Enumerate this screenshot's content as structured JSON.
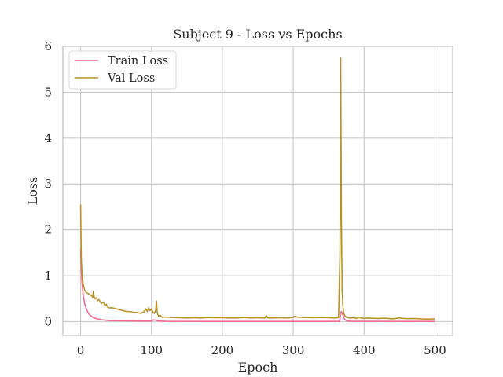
{
  "chart_data": {
    "type": "line",
    "title": "Subject 9 - Loss vs Epochs",
    "xlabel": "Epoch",
    "ylabel": "Loss",
    "xlim": [
      -25,
      525
    ],
    "ylim": [
      -0.3,
      6
    ],
    "xticks": [
      0,
      100,
      200,
      300,
      400,
      500
    ],
    "yticks": [
      0,
      1,
      2,
      3,
      4,
      5,
      6
    ],
    "grid": true,
    "legend_position": "top-left",
    "series": [
      {
        "name": "Train Loss",
        "color": "#f0698f",
        "points": [
          [
            0,
            1.58
          ],
          [
            1,
            1.1
          ],
          [
            2,
            0.85
          ],
          [
            3,
            0.68
          ],
          [
            4,
            0.55
          ],
          [
            5,
            0.45
          ],
          [
            6,
            0.38
          ],
          [
            8,
            0.28
          ],
          [
            10,
            0.21
          ],
          [
            12,
            0.16
          ],
          [
            15,
            0.12
          ],
          [
            18,
            0.09
          ],
          [
            20,
            0.075
          ],
          [
            25,
            0.055
          ],
          [
            30,
            0.04
          ],
          [
            40,
            0.025
          ],
          [
            50,
            0.02
          ],
          [
            70,
            0.015
          ],
          [
            90,
            0.012
          ],
          [
            100,
            0.012
          ],
          [
            103,
            0.04
          ],
          [
            106,
            0.03
          ],
          [
            110,
            0.015
          ],
          [
            120,
            0.008
          ],
          [
            150,
            0.006
          ],
          [
            200,
            0.005
          ],
          [
            250,
            0.005
          ],
          [
            300,
            0.005
          ],
          [
            365,
            0.005
          ],
          [
            366,
            0.06
          ],
          [
            367,
            0.2
          ],
          [
            368,
            0.22
          ],
          [
            370,
            0.15
          ],
          [
            372,
            0.06
          ],
          [
            375,
            0.02
          ],
          [
            380,
            0.01
          ],
          [
            400,
            0.008
          ],
          [
            450,
            0.006
          ],
          [
            500,
            0.005
          ]
        ]
      },
      {
        "name": "Val Loss",
        "color": "#b8922a",
        "points": [
          [
            0,
            2.55
          ],
          [
            1,
            1.35
          ],
          [
            2,
            1.05
          ],
          [
            3,
            0.9
          ],
          [
            4,
            0.78
          ],
          [
            6,
            0.68
          ],
          [
            8,
            0.63
          ],
          [
            10,
            0.62
          ],
          [
            12,
            0.6
          ],
          [
            14,
            0.58
          ],
          [
            16,
            0.56
          ],
          [
            17,
            0.52
          ],
          [
            18,
            0.66
          ],
          [
            19,
            0.55
          ],
          [
            20,
            0.5
          ],
          [
            22,
            0.52
          ],
          [
            24,
            0.46
          ],
          [
            26,
            0.48
          ],
          [
            28,
            0.42
          ],
          [
            30,
            0.4
          ],
          [
            32,
            0.43
          ],
          [
            34,
            0.36
          ],
          [
            36,
            0.38
          ],
          [
            38,
            0.32
          ],
          [
            40,
            0.3
          ],
          [
            45,
            0.3
          ],
          [
            50,
            0.28
          ],
          [
            55,
            0.26
          ],
          [
            60,
            0.24
          ],
          [
            65,
            0.22
          ],
          [
            70,
            0.22
          ],
          [
            75,
            0.2
          ],
          [
            80,
            0.2
          ],
          [
            85,
            0.18
          ],
          [
            90,
            0.22
          ],
          [
            92,
            0.28
          ],
          [
            94,
            0.22
          ],
          [
            96,
            0.3
          ],
          [
            98,
            0.24
          ],
          [
            100,
            0.28
          ],
          [
            102,
            0.2
          ],
          [
            104,
            0.18
          ],
          [
            106,
            0.25
          ],
          [
            107,
            0.45
          ],
          [
            108,
            0.22
          ],
          [
            109,
            0.15
          ],
          [
            110,
            0.12
          ],
          [
            112,
            0.14
          ],
          [
            115,
            0.1
          ],
          [
            120,
            0.1
          ],
          [
            130,
            0.09
          ],
          [
            140,
            0.085
          ],
          [
            150,
            0.08
          ],
          [
            160,
            0.085
          ],
          [
            170,
            0.08
          ],
          [
            180,
            0.09
          ],
          [
            190,
            0.085
          ],
          [
            200,
            0.085
          ],
          [
            210,
            0.08
          ],
          [
            220,
            0.08
          ],
          [
            230,
            0.09
          ],
          [
            240,
            0.08
          ],
          [
            250,
            0.085
          ],
          [
            260,
            0.075
          ],
          [
            262,
            0.13
          ],
          [
            264,
            0.08
          ],
          [
            270,
            0.08
          ],
          [
            280,
            0.085
          ],
          [
            290,
            0.08
          ],
          [
            300,
            0.09
          ],
          [
            302,
            0.12
          ],
          [
            305,
            0.1
          ],
          [
            310,
            0.095
          ],
          [
            320,
            0.09
          ],
          [
            330,
            0.085
          ],
          [
            340,
            0.09
          ],
          [
            350,
            0.085
          ],
          [
            360,
            0.08
          ],
          [
            364,
            0.09
          ],
          [
            366,
            1.5
          ],
          [
            367,
            5.75
          ],
          [
            368,
            2.2
          ],
          [
            369,
            0.7
          ],
          [
            370,
            0.35
          ],
          [
            371,
            0.2
          ],
          [
            373,
            0.12
          ],
          [
            376,
            0.09
          ],
          [
            380,
            0.08
          ],
          [
            385,
            0.085
          ],
          [
            390,
            0.07
          ],
          [
            392,
            0.1
          ],
          [
            395,
            0.08
          ],
          [
            400,
            0.07
          ],
          [
            405,
            0.08
          ],
          [
            410,
            0.075
          ],
          [
            420,
            0.07
          ],
          [
            430,
            0.075
          ],
          [
            440,
            0.06
          ],
          [
            450,
            0.08
          ],
          [
            460,
            0.065
          ],
          [
            470,
            0.07
          ],
          [
            480,
            0.06
          ],
          [
            490,
            0.055
          ],
          [
            500,
            0.06
          ]
        ]
      }
    ]
  }
}
